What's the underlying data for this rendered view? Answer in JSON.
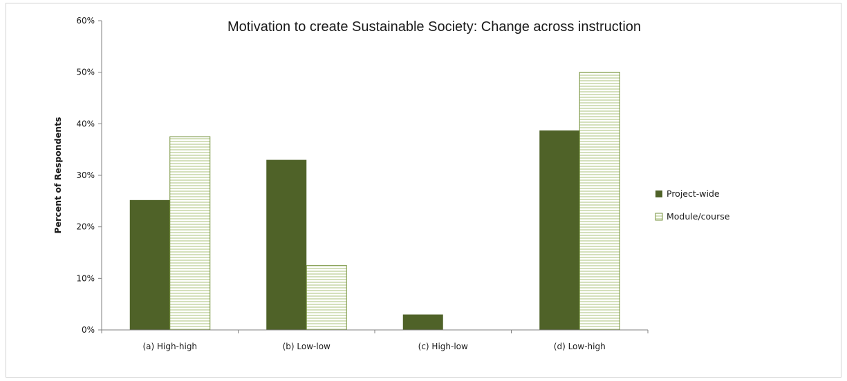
{
  "chart_data": {
    "type": "bar",
    "title": "Motivation to create Sustainable Society:  Change across instruction",
    "xlabel": "",
    "ylabel": "Percent of Respondents",
    "ylim": [
      0,
      60
    ],
    "yticks": [
      "0%",
      "10%",
      "20%",
      "30%",
      "40%",
      "50%",
      "60%"
    ],
    "categories": [
      "(a) High-high",
      "(b) Low-low",
      "(c)  High-low",
      "(d) Low-high"
    ],
    "series": [
      {
        "name": "Project-wide",
        "values": [
          25.2,
          33.0,
          3.0,
          38.7
        ],
        "color": "#4f6228",
        "pattern": "solid"
      },
      {
        "name": "Module/course",
        "values": [
          37.5,
          12.5,
          0,
          50.0
        ],
        "color": "#76923c",
        "pattern": "horizontal-lines"
      }
    ],
    "grid": false,
    "legend": "right"
  }
}
